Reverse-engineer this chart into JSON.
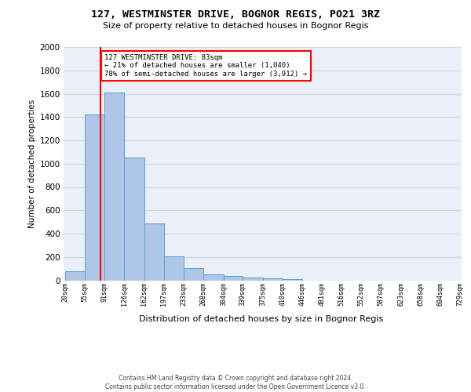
{
  "title1": "127, WESTMINSTER DRIVE, BOGNOR REGIS, PO21 3RZ",
  "title2": "Size of property relative to detached houses in Bognor Regis",
  "xlabel": "Distribution of detached houses by size in Bognor Regis",
  "ylabel": "Number of detached properties",
  "bins": [
    20,
    55,
    91,
    126,
    162,
    197,
    233,
    268,
    304,
    339,
    375,
    410,
    446,
    481,
    516,
    552,
    587,
    623,
    658,
    694,
    729
  ],
  "bar_heights": [
    80,
    1420,
    1610,
    1050,
    490,
    205,
    105,
    48,
    35,
    22,
    18,
    12,
    0,
    0,
    0,
    0,
    0,
    0,
    0,
    0
  ],
  "bar_color": "#aec6e8",
  "bar_edge_color": "#5a9fd4",
  "vline_x": 83,
  "vline_color": "red",
  "annotation_line1": "127 WESTMINSTER DRIVE: 83sqm",
  "annotation_line2": "← 21% of detached houses are smaller (1,040)",
  "annotation_line3": "78% of semi-detached houses are larger (3,912) →",
  "ylim": [
    0,
    2000
  ],
  "yticks": [
    0,
    200,
    400,
    600,
    800,
    1000,
    1200,
    1400,
    1600,
    1800,
    2000
  ],
  "grid_color": "#d0d8e8",
  "bg_color": "#eaeff8",
  "footer1": "Contains HM Land Registry data © Crown copyright and database right 2024.",
  "footer2": "Contains public sector information licensed under the Open Government Licence v3.0."
}
